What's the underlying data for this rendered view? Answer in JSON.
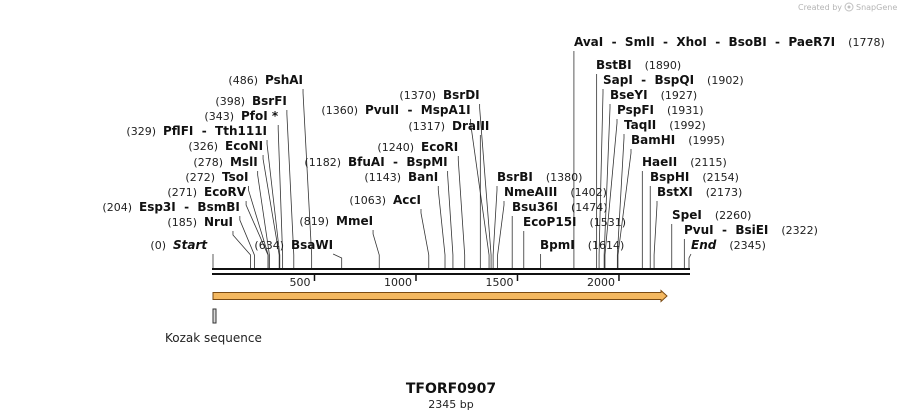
{
  "branding": {
    "created_by": "Created by",
    "brand_name": "SnapGene"
  },
  "map": {
    "title": "TFORF0907",
    "length_label": "2345 bp",
    "total_bp": 2345,
    "ruler_ticks": [
      {
        "value": 500,
        "label": "500"
      },
      {
        "value": 1000,
        "label": "1000"
      },
      {
        "value": 1500,
        "label": "1500"
      },
      {
        "value": 2000,
        "label": "2000"
      }
    ],
    "features": [
      {
        "name": "orf-arrow",
        "type": "arrow",
        "start": 1,
        "end": 2345,
        "label": ""
      },
      {
        "name": "kozak-sequence",
        "type": "box",
        "start": 1,
        "end": 10,
        "label": "Kozak sequence"
      }
    ],
    "sites": [
      {
        "name": "Start",
        "pos": 0,
        "pos_label": "(0)",
        "italic": true
      },
      {
        "name": "NruI",
        "pos": 185,
        "pos_label": "(185)",
        "italic": false
      },
      {
        "name": "Esp3I  -  BsmBI",
        "pos": 204,
        "pos_label": "(204)",
        "italic": false
      },
      {
        "name": "EcoRV",
        "pos": 271,
        "pos_label": "(271)",
        "italic": false
      },
      {
        "name": "TsoI",
        "pos": 272,
        "pos_label": "(272)",
        "italic": false
      },
      {
        "name": "MslI",
        "pos": 278,
        "pos_label": "(278)",
        "italic": false
      },
      {
        "name": "EcoNI",
        "pos": 326,
        "pos_label": "(326)",
        "italic": false
      },
      {
        "name": "PflFI  -  Tth111I",
        "pos": 329,
        "pos_label": "(329)",
        "italic": false
      },
      {
        "name": "PfoI *",
        "pos": 343,
        "pos_label": "(343)",
        "italic": false
      },
      {
        "name": "BsrFI",
        "pos": 398,
        "pos_label": "(398)",
        "italic": false
      },
      {
        "name": "PshAI",
        "pos": 486,
        "pos_label": "(486)",
        "italic": false
      },
      {
        "name": "BsaWI",
        "pos": 634,
        "pos_label": "(634)",
        "italic": false
      },
      {
        "name": "MmeI",
        "pos": 819,
        "pos_label": "(819)",
        "italic": false
      },
      {
        "name": "AccI",
        "pos": 1063,
        "pos_label": "(1063)",
        "italic": false
      },
      {
        "name": "BanI",
        "pos": 1143,
        "pos_label": "(1143)",
        "italic": false
      },
      {
        "name": "BfuAI  -  BspMI",
        "pos": 1182,
        "pos_label": "(1182)",
        "italic": false
      },
      {
        "name": "EcoRI",
        "pos": 1240,
        "pos_label": "(1240)",
        "italic": false
      },
      {
        "name": "DraIII",
        "pos": 1317,
        "pos_label": "(1317)",
        "italic": false
      },
      {
        "name": "PvuII  -  MspA1I",
        "pos": 1360,
        "pos_label": "(1360)",
        "italic": false
      },
      {
        "name": "BsrDI",
        "pos": 1370,
        "pos_label": "(1370)",
        "italic": false
      },
      {
        "name": "BsrBI",
        "pos": 1380,
        "pos_label": "(1380)",
        "italic": false
      },
      {
        "name": "NmeAIII",
        "pos": 1402,
        "pos_label": "(1402)",
        "italic": false
      },
      {
        "name": "Bsu36I",
        "pos": 1474,
        "pos_label": "(1474)",
        "italic": false
      },
      {
        "name": "EcoP15I",
        "pos": 1531,
        "pos_label": "(1531)",
        "italic": false
      },
      {
        "name": "BpmI",
        "pos": 1614,
        "pos_label": "(1614)",
        "italic": false
      },
      {
        "name": "AvaI  -  SmlI  -  XhoI  -  BsoBI  -  PaeR7I",
        "pos": 1778,
        "pos_label": "(1778)",
        "italic": false
      },
      {
        "name": "BstBI",
        "pos": 1890,
        "pos_label": "(1890)",
        "italic": false
      },
      {
        "name": "SapI  -  BspQI",
        "pos": 1902,
        "pos_label": "(1902)",
        "italic": false
      },
      {
        "name": "BseYI",
        "pos": 1927,
        "pos_label": "(1927)",
        "italic": false
      },
      {
        "name": "PspFI",
        "pos": 1931,
        "pos_label": "(1931)",
        "italic": false
      },
      {
        "name": "TaqII",
        "pos": 1992,
        "pos_label": "(1992)",
        "italic": false
      },
      {
        "name": "BamHI",
        "pos": 1995,
        "pos_label": "(1995)",
        "italic": false
      },
      {
        "name": "HaeII",
        "pos": 2115,
        "pos_label": "(2115)",
        "italic": false
      },
      {
        "name": "BspHI",
        "pos": 2154,
        "pos_label": "(2154)",
        "italic": false
      },
      {
        "name": "BstXI",
        "pos": 2173,
        "pos_label": "(2173)",
        "italic": false
      },
      {
        "name": "SpeI",
        "pos": 2260,
        "pos_label": "(2260)",
        "italic": false
      },
      {
        "name": "PvuI  -  BsiEI",
        "pos": 2322,
        "pos_label": "(2322)",
        "italic": false
      },
      {
        "name": "End",
        "pos": 2345,
        "pos_label": "(2345)",
        "italic": true
      }
    ]
  },
  "colors": {
    "arrow_fill": "#f4b860",
    "arrow_stroke": "#7a4a12",
    "backbone": "#111111",
    "box_fill": "#d9d9d9"
  }
}
